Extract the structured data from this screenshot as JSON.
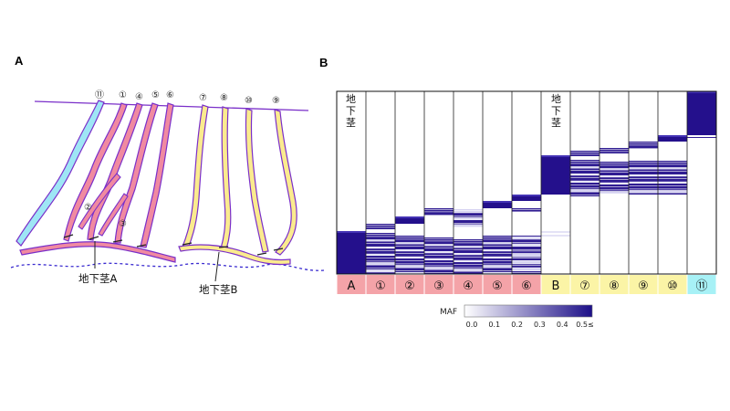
{
  "panel_a": {
    "label": "A",
    "culm_labels": [
      "⑪",
      "①",
      "④",
      "⑤",
      "⑥",
      "⑦",
      "⑧",
      "⑩",
      "⑨"
    ],
    "inner_labels": [
      "②",
      "③"
    ],
    "rhizome_a": "地下茎A",
    "rhizome_b": "地下茎B",
    "colors": {
      "pink": "#f08aa0",
      "yellow": "#fbeb8e",
      "cyan": "#9ee6f5",
      "outline": "#7a2fc9"
    }
  },
  "panel_b": {
    "label": "B",
    "rhizome_text_a": "地下茎",
    "rhizome_text_b": "地下茎",
    "columns": [
      {
        "label": "A",
        "group": "pink"
      },
      {
        "label": "①",
        "group": "pink"
      },
      {
        "label": "②",
        "group": "pink"
      },
      {
        "label": "③",
        "group": "pink"
      },
      {
        "label": "④",
        "group": "pink"
      },
      {
        "label": "⑤",
        "group": "pink"
      },
      {
        "label": "⑥",
        "group": "pink"
      },
      {
        "label": "B",
        "group": "yellow"
      },
      {
        "label": "⑦",
        "group": "yellow"
      },
      {
        "label": "⑧",
        "group": "yellow"
      },
      {
        "label": "⑨",
        "group": "yellow"
      },
      {
        "label": "⑩",
        "group": "yellow"
      },
      {
        "label": "⑪",
        "group": "cyan"
      }
    ],
    "colors": {
      "pink": "#f4a3a8",
      "yellow": "#fbf4a6",
      "cyan": "#a7f1f6",
      "dark": "#24108c"
    },
    "colorbar": {
      "title": "MAF",
      "ticks": [
        "0.0",
        "0.1",
        "0.2",
        "0.3",
        "0.4",
        "0.5≤"
      ]
    }
  }
}
